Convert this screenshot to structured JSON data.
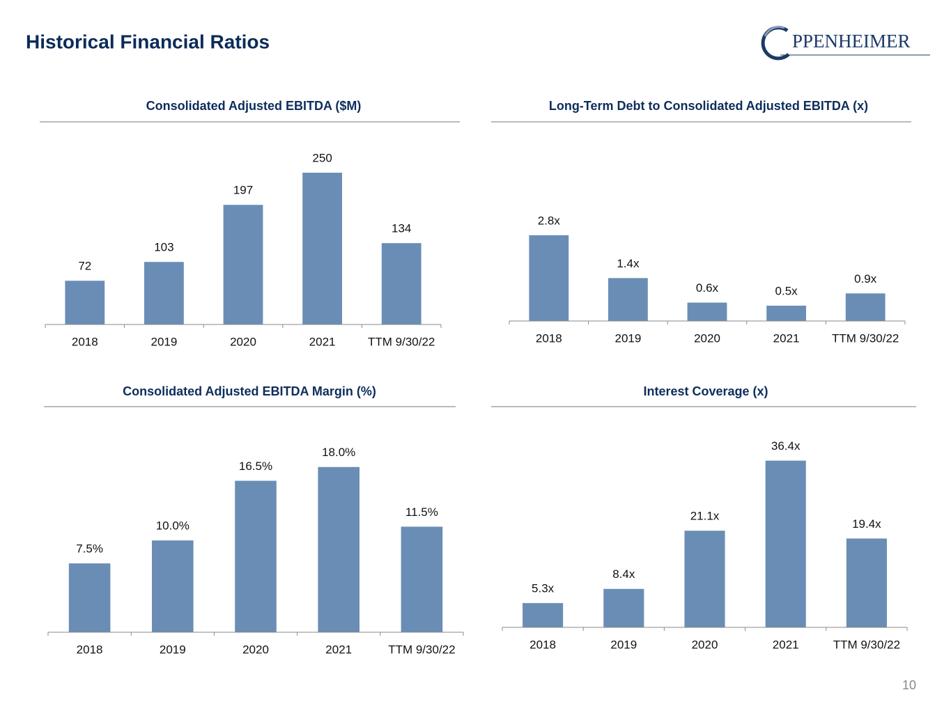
{
  "title": "Historical Financial Ratios",
  "logo": "PPENHEIMER",
  "page_number": "10",
  "chart_data": [
    {
      "type": "bar",
      "title": "Consolidated Adjusted EBITDA ($M)",
      "categories": [
        "2018",
        "2019",
        "2020",
        "2021",
        "TTM 9/30/22"
      ],
      "values": [
        72,
        103,
        197,
        250,
        134
      ],
      "color": "#6a8db5",
      "ylim": [
        0,
        320
      ]
    },
    {
      "type": "bar",
      "title": "Long-Term Debt to Consolidated Adjusted EBITDA (x)",
      "categories": [
        "2018",
        "2019",
        "2020",
        "2021",
        "TTM 9/30/22"
      ],
      "values": [
        2.8,
        1.4,
        0.6,
        0.5,
        0.9
      ],
      "value_labels": [
        "2.8x",
        "1.4x",
        "0.6x",
        "0.5x",
        "0.9x"
      ],
      "color": "#6a8db5",
      "ylim": [
        0,
        5
      ]
    },
    {
      "type": "bar",
      "title": "Consolidated Adjusted EBITDA Margin (%)",
      "categories": [
        "2018",
        "2019",
        "2020",
        "2021",
        "TTM 9/30/22"
      ],
      "values": [
        7.5,
        10.0,
        16.5,
        18.0,
        11.5
      ],
      "value_labels": [
        "7.5%",
        "10.0%",
        "16.5%",
        "18.0%",
        "11.5%"
      ],
      "color": "#6a8db5",
      "ylim": [
        0,
        22
      ]
    },
    {
      "type": "bar",
      "title": "Interest Coverage (x)",
      "categories": [
        "2018",
        "2019",
        "2020",
        "2021",
        "TTM 9/30/22"
      ],
      "values": [
        5.3,
        8.4,
        21.1,
        36.4,
        19.4
      ],
      "value_labels": [
        "5.3x",
        "8.4x",
        "21.1x",
        "36.4x",
        "19.4x"
      ],
      "color": "#6a8db5",
      "ylim": [
        0,
        45
      ]
    }
  ]
}
